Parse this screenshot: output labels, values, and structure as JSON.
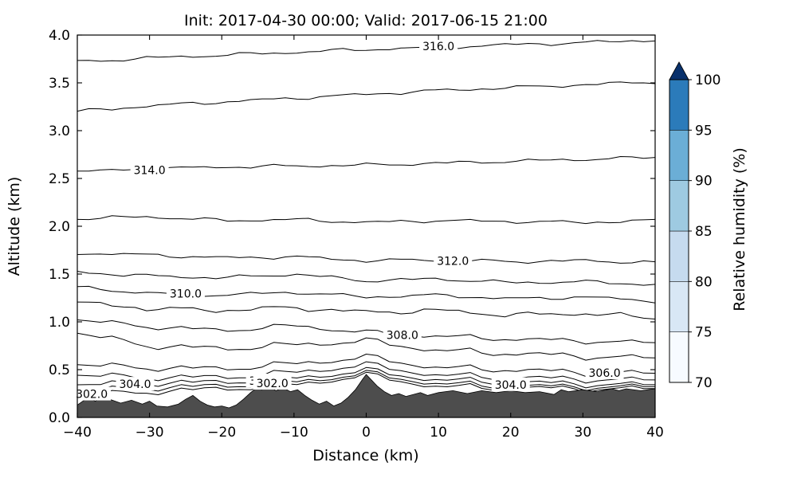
{
  "chart_data": {
    "type": "contour",
    "title": "Init: 2017-04-30 00:00; Valid: 2017-06-15 21:00",
    "xlabel": "Distance (km)",
    "ylabel": "Altitude (km)",
    "xlim": [
      -40,
      40
    ],
    "ylim": [
      0,
      4
    ],
    "grid": false,
    "line_color": "#000000",
    "x_ticks": [
      {
        "v": -40,
        "label": "−40"
      },
      {
        "v": -30,
        "label": "−30"
      },
      {
        "v": -20,
        "label": "−20"
      },
      {
        "v": -10,
        "label": "−10"
      },
      {
        "v": 0,
        "label": "0"
      },
      {
        "v": 10,
        "label": "10"
      },
      {
        "v": 20,
        "label": "20"
      },
      {
        "v": 30,
        "label": "30"
      },
      {
        "v": 40,
        "label": "40"
      }
    ],
    "y_ticks": [
      {
        "v": 0.0,
        "label": "0.0"
      },
      {
        "v": 0.5,
        "label": "0.5"
      },
      {
        "v": 1.0,
        "label": "1.0"
      },
      {
        "v": 1.5,
        "label": "1.5"
      },
      {
        "v": 2.0,
        "label": "2.0"
      },
      {
        "v": 2.5,
        "label": "2.5"
      },
      {
        "v": 3.0,
        "label": "3.0"
      },
      {
        "v": 3.5,
        "label": "3.5"
      },
      {
        "v": 4.0,
        "label": "4.0"
      }
    ],
    "contour_x": [
      -40,
      -30,
      -20,
      -10,
      0,
      10,
      20,
      30,
      40
    ],
    "contours": [
      {
        "level": 316,
        "altitudes": [
          3.72,
          3.76,
          3.79,
          3.82,
          3.85,
          3.87,
          3.9,
          3.92,
          3.95
        ]
      },
      {
        "level": 315,
        "altitudes": [
          3.2,
          3.26,
          3.3,
          3.34,
          3.38,
          3.42,
          3.45,
          3.48,
          3.51
        ]
      },
      {
        "level": 314,
        "altitudes": [
          2.57,
          2.6,
          2.62,
          2.63,
          2.64,
          2.66,
          2.68,
          2.7,
          2.72
        ]
      },
      {
        "level": 313,
        "altitudes": [
          2.08,
          2.1,
          2.06,
          2.07,
          2.04,
          2.06,
          2.05,
          2.04,
          2.06
        ]
      },
      {
        "level": 312,
        "altitudes": [
          1.72,
          1.7,
          1.67,
          1.68,
          1.64,
          1.65,
          1.63,
          1.64,
          1.62
        ]
      },
      {
        "level": 311,
        "altitudes": [
          1.52,
          1.48,
          1.46,
          1.5,
          1.43,
          1.45,
          1.41,
          1.42,
          1.39
        ]
      },
      {
        "level": 310,
        "altitudes": [
          1.36,
          1.3,
          1.28,
          1.31,
          1.26,
          1.28,
          1.24,
          1.26,
          1.22
        ]
      },
      {
        "level": 309,
        "altitudes": [
          1.2,
          1.14,
          1.12,
          1.15,
          1.1,
          1.12,
          1.07,
          1.09,
          1.04
        ]
      },
      {
        "level": 308,
        "altitudes": [
          1.02,
          0.95,
          0.91,
          0.96,
          0.89,
          0.85,
          0.82,
          0.8,
          0.78
        ]
      },
      {
        "level": 307,
        "altitudes": [
          0.88,
          0.75,
          0.72,
          0.76,
          0.8,
          0.7,
          0.67,
          0.64,
          0.62
        ]
      },
      {
        "level": 306,
        "altitudes": [
          0.55,
          0.52,
          0.51,
          0.56,
          0.63,
          0.52,
          0.5,
          0.47,
          0.46
        ]
      },
      {
        "level": 305,
        "altitudes": [
          0.44,
          0.42,
          0.42,
          0.47,
          0.55,
          0.44,
          0.42,
          0.4,
          0.39
        ]
      },
      {
        "level": 304,
        "altitudes": [
          0.34,
          0.36,
          0.37,
          0.41,
          0.49,
          0.39,
          0.37,
          0.35,
          0.34
        ]
      },
      {
        "level": 303,
        "altitudes": [
          0.28,
          0.31,
          0.33,
          0.37,
          0.46,
          0.35,
          0.33,
          0.32,
          0.32
        ]
      },
      {
        "level": 302,
        "altitudes": [
          0.23,
          0.27,
          0.3,
          0.34,
          0.44,
          0.32,
          0.31,
          0.3,
          0.3
        ]
      }
    ],
    "contour_labels": [
      {
        "text": "316.0",
        "level": 316,
        "x": 10
      },
      {
        "text": "314.0",
        "level": 314,
        "x": -30
      },
      {
        "text": "312.0",
        "level": 312,
        "x": 12
      },
      {
        "text": "310.0",
        "level": 310,
        "x": -25
      },
      {
        "text": "308.0",
        "level": 308,
        "x": 5
      },
      {
        "text": "306.0",
        "level": 306,
        "x": 33
      },
      {
        "text": "304.0",
        "level": 304,
        "x": 20
      },
      {
        "text": "304.0",
        "level": 304,
        "x": -32
      },
      {
        "text": "304.0",
        "level": 304,
        "x": -14
      },
      {
        "text": "302.0",
        "level": 302,
        "x": -13
      },
      {
        "text": "302.0",
        "level": 302,
        "x": -38
      }
    ],
    "terrain": {
      "color": "#4d4d4d",
      "points": [
        [
          -40,
          0.13
        ],
        [
          -38.5,
          0.21
        ],
        [
          -37.5,
          0.17
        ],
        [
          -36.5,
          0.23
        ],
        [
          -35.5,
          0.19
        ],
        [
          -34,
          0.15
        ],
        [
          -32.5,
          0.18
        ],
        [
          -31,
          0.14
        ],
        [
          -30,
          0.17
        ],
        [
          -29,
          0.12
        ],
        [
          -27.5,
          0.11
        ],
        [
          -26,
          0.14
        ],
        [
          -25,
          0.19
        ],
        [
          -24,
          0.23
        ],
        [
          -23,
          0.17
        ],
        [
          -22,
          0.13
        ],
        [
          -21,
          0.11
        ],
        [
          -20,
          0.12
        ],
        [
          -19,
          0.1
        ],
        [
          -18,
          0.13
        ],
        [
          -17,
          0.19
        ],
        [
          -16,
          0.26
        ],
        [
          -15,
          0.32
        ],
        [
          -14.5,
          0.29
        ],
        [
          -13.5,
          0.33
        ],
        [
          -12.5,
          0.28
        ],
        [
          -11.5,
          0.31
        ],
        [
          -10.5,
          0.27
        ],
        [
          -9.5,
          0.29
        ],
        [
          -8.5,
          0.23
        ],
        [
          -7.5,
          0.18
        ],
        [
          -6.5,
          0.14
        ],
        [
          -5.5,
          0.17
        ],
        [
          -4.5,
          0.12
        ],
        [
          -3.5,
          0.15
        ],
        [
          -2.5,
          0.21
        ],
        [
          -1.5,
          0.29
        ],
        [
          -0.5,
          0.4
        ],
        [
          0,
          0.45
        ],
        [
          0.5,
          0.41
        ],
        [
          1.5,
          0.33
        ],
        [
          2.5,
          0.27
        ],
        [
          3.5,
          0.23
        ],
        [
          4.5,
          0.25
        ],
        [
          5.5,
          0.22
        ],
        [
          6.5,
          0.24
        ],
        [
          7.5,
          0.26
        ],
        [
          8.5,
          0.23
        ],
        [
          10,
          0.26
        ],
        [
          12,
          0.28
        ],
        [
          14,
          0.25
        ],
        [
          16,
          0.28
        ],
        [
          18,
          0.26
        ],
        [
          20,
          0.28
        ],
        [
          22,
          0.26
        ],
        [
          24,
          0.27
        ],
        [
          26,
          0.24
        ],
        [
          27,
          0.29
        ],
        [
          28,
          0.27
        ],
        [
          30,
          0.29
        ],
        [
          32,
          0.27
        ],
        [
          34,
          0.3
        ],
        [
          35,
          0.28
        ],
        [
          36,
          0.3
        ],
        [
          38,
          0.28
        ],
        [
          40,
          0.3
        ]
      ]
    },
    "colorbar": {
      "label": "Relative humidity (%)",
      "min": 70,
      "max": 100,
      "ticks": [
        70,
        75,
        80,
        85,
        90,
        95,
        100
      ],
      "segments": [
        {
          "range": [
            70,
            75
          ],
          "color": "#f7fbff"
        },
        {
          "range": [
            75,
            80
          ],
          "color": "#d8e7f5"
        },
        {
          "range": [
            80,
            85
          ],
          "color": "#c6dbef"
        },
        {
          "range": [
            85,
            90
          ],
          "color": "#9ecae1"
        },
        {
          "range": [
            90,
            95
          ],
          "color": "#6baed6"
        },
        {
          "range": [
            95,
            100
          ],
          "color": "#2b7bba"
        }
      ],
      "over_color": "#08306b"
    }
  }
}
